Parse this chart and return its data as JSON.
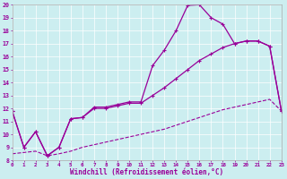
{
  "xlabel": "Windchill (Refroidissement éolien,°C)",
  "bg_color": "#cceef0",
  "line_color": "#990099",
  "xlim": [
    0,
    23
  ],
  "ylim": [
    8,
    20
  ],
  "xticks": [
    0,
    1,
    2,
    3,
    4,
    5,
    6,
    7,
    8,
    9,
    10,
    11,
    12,
    13,
    14,
    15,
    16,
    17,
    18,
    19,
    20,
    21,
    22,
    23
  ],
  "yticks": [
    8,
    9,
    10,
    11,
    12,
    13,
    14,
    15,
    16,
    17,
    18,
    19,
    20
  ],
  "line1_x": [
    0,
    1,
    2,
    3,
    4,
    5,
    6,
    7,
    8,
    9,
    10,
    11,
    12,
    13,
    14,
    15,
    16,
    17,
    18,
    19,
    20,
    21,
    22,
    23
  ],
  "line1_y": [
    11.8,
    9.0,
    10.2,
    8.35,
    9.0,
    11.2,
    11.3,
    12.1,
    12.1,
    12.3,
    12.5,
    12.5,
    15.3,
    16.5,
    18.0,
    19.95,
    20.0,
    19.0,
    18.5,
    17.0,
    17.2,
    17.2,
    16.8,
    11.8
  ],
  "line2_x": [
    0,
    1,
    2,
    3,
    4,
    5,
    6,
    7,
    8,
    9,
    10,
    11,
    12,
    13,
    14,
    15,
    16,
    17,
    18,
    19,
    20,
    21,
    22,
    23
  ],
  "line2_y": [
    11.8,
    9.0,
    10.2,
    8.35,
    9.0,
    11.2,
    11.3,
    12.0,
    12.0,
    12.2,
    12.4,
    12.4,
    13.0,
    13.6,
    14.3,
    15.0,
    15.7,
    16.2,
    16.7,
    17.0,
    17.2,
    17.2,
    16.8,
    11.8
  ],
  "line3_x": [
    0,
    1,
    2,
    3,
    4,
    5,
    6,
    7,
    8,
    9,
    10,
    11,
    12,
    13,
    14,
    15,
    16,
    17,
    18,
    19,
    20,
    21,
    22,
    23
  ],
  "line3_y": [
    8.5,
    8.6,
    8.7,
    8.35,
    8.5,
    8.7,
    9.0,
    9.2,
    9.4,
    9.6,
    9.8,
    10.0,
    10.2,
    10.4,
    10.7,
    11.0,
    11.3,
    11.6,
    11.9,
    12.1,
    12.3,
    12.5,
    12.7,
    11.8
  ]
}
